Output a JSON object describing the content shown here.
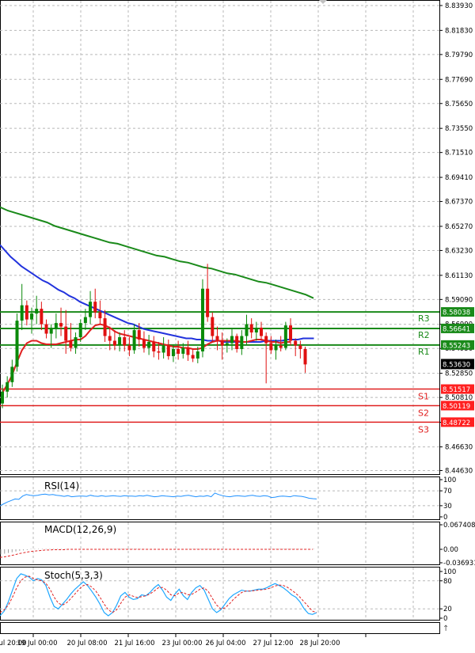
{
  "chart_data": {
    "type": "candlestick",
    "price_ticks": [
      "8.83930",
      "8.81830",
      "8.79790",
      "8.77690",
      "8.75650",
      "8.73550",
      "8.71510",
      "8.69410",
      "8.67370",
      "8.65270",
      "8.63230",
      "8.61130",
      "8.59090",
      "8.56990",
      "8.54950",
      "8.52850",
      "8.50810",
      "8.48710",
      "8.46630",
      "8.44630"
    ],
    "x_ticks": [
      "18 Jul 20:00",
      "19 Jul 00:00",
      "20 Jul 08:00",
      "21 Jul 16:00",
      "23 Jul 00:00",
      "26 Jul 04:00",
      "27 Jul 12:00",
      "28 Jul 20:00"
    ],
    "price_range": [
      8.4433,
      8.8433
    ],
    "levels": [
      {
        "name": "R3",
        "value": 8.58038,
        "label": "8.58038",
        "kind": "resistance"
      },
      {
        "name": "R2",
        "value": 8.56641,
        "label": "8.56641",
        "kind": "resistance"
      },
      {
        "name": "R1",
        "value": 8.55243,
        "label": "8.55243",
        "kind": "resistance"
      },
      {
        "name": "S1",
        "value": 8.51517,
        "label": "8.51517",
        "kind": "support"
      },
      {
        "name": "S2",
        "value": 8.50119,
        "label": "8.50119",
        "kind": "support"
      },
      {
        "name": "S3",
        "value": 8.48722,
        "label": "8.48722",
        "kind": "support"
      }
    ],
    "current_price": {
      "value": 8.5363,
      "label": "8.53630"
    },
    "candles": [
      [
        8.503,
        8.519,
        8.499,
        8.513
      ],
      [
        8.513,
        8.526,
        8.508,
        8.521
      ],
      [
        8.521,
        8.54,
        8.517,
        8.534
      ],
      [
        8.534,
        8.579,
        8.53,
        8.573
      ],
      [
        8.573,
        8.604,
        8.565,
        8.586
      ],
      [
        8.586,
        8.59,
        8.569,
        8.574
      ],
      [
        8.574,
        8.584,
        8.562,
        8.579
      ],
      [
        8.579,
        8.594,
        8.57,
        8.583
      ],
      [
        8.583,
        8.589,
        8.565,
        8.57
      ],
      [
        8.57,
        8.574,
        8.558,
        8.562
      ],
      [
        8.562,
        8.57,
        8.55,
        8.566
      ],
      [
        8.566,
        8.579,
        8.558,
        8.571
      ],
      [
        8.571,
        8.584,
        8.56,
        8.568
      ],
      [
        8.568,
        8.582,
        8.545,
        8.556
      ],
      [
        8.556,
        8.571,
        8.547,
        8.55
      ],
      [
        8.55,
        8.563,
        8.545,
        8.559
      ],
      [
        8.559,
        8.574,
        8.555,
        8.571
      ],
      [
        8.571,
        8.583,
        8.565,
        8.576
      ],
      [
        8.576,
        8.598,
        8.57,
        8.589
      ],
      [
        8.589,
        8.6,
        8.575,
        8.58
      ],
      [
        8.58,
        8.59,
        8.57,
        8.575
      ],
      [
        8.575,
        8.582,
        8.555,
        8.56
      ],
      [
        8.56,
        8.568,
        8.548,
        8.556
      ],
      [
        8.556,
        8.565,
        8.548,
        8.552
      ],
      [
        8.552,
        8.563,
        8.547,
        8.559
      ],
      [
        8.559,
        8.565,
        8.547,
        8.552
      ],
      [
        8.552,
        8.559,
        8.543,
        8.548
      ],
      [
        8.548,
        8.57,
        8.545,
        8.565
      ],
      [
        8.565,
        8.571,
        8.551,
        8.557
      ],
      [
        8.557,
        8.564,
        8.546,
        8.55
      ],
      [
        8.55,
        8.561,
        8.544,
        8.555
      ],
      [
        8.555,
        8.56,
        8.542,
        8.547
      ],
      [
        8.547,
        8.555,
        8.54,
        8.546
      ],
      [
        8.546,
        8.559,
        8.541,
        8.552
      ],
      [
        8.552,
        8.557,
        8.54,
        8.543
      ],
      [
        8.543,
        8.553,
        8.538,
        8.549
      ],
      [
        8.549,
        8.556,
        8.54,
        8.545
      ],
      [
        8.545,
        8.554,
        8.541,
        8.55
      ],
      [
        8.55,
        8.556,
        8.539,
        8.544
      ],
      [
        8.544,
        8.549,
        8.538,
        8.541
      ],
      [
        8.541,
        8.551,
        8.537,
        8.547
      ],
      [
        8.547,
        8.608,
        8.542,
        8.6
      ],
      [
        8.6,
        8.621,
        8.572,
        8.576
      ],
      [
        8.576,
        8.58,
        8.555,
        8.56
      ],
      [
        8.56,
        8.568,
        8.548,
        8.556
      ],
      [
        8.556,
        8.563,
        8.54,
        8.552
      ],
      [
        8.552,
        8.558,
        8.546,
        8.554
      ],
      [
        8.554,
        8.566,
        8.548,
        8.56
      ],
      [
        8.56,
        8.562,
        8.546,
        8.549
      ],
      [
        8.549,
        8.565,
        8.544,
        8.56
      ],
      [
        8.56,
        8.578,
        8.553,
        8.57
      ],
      [
        8.57,
        8.575,
        8.558,
        8.563
      ],
      [
        8.563,
        8.572,
        8.556,
        8.567
      ],
      [
        8.567,
        8.572,
        8.556,
        8.56
      ],
      [
        8.56,
        8.563,
        8.52,
        8.554
      ],
      [
        8.554,
        8.56,
        8.545,
        8.548
      ],
      [
        8.548,
        8.557,
        8.54,
        8.552
      ],
      [
        8.552,
        8.56,
        8.547,
        8.55
      ],
      [
        8.55,
        8.572,
        8.548,
        8.569
      ],
      [
        8.569,
        8.575,
        8.552,
        8.556
      ],
      [
        8.556,
        8.558,
        8.543,
        8.552
      ],
      [
        8.552,
        8.556,
        8.541,
        8.549
      ],
      [
        8.549,
        8.551,
        8.529,
        8.536
      ]
    ],
    "ma_blue": [
      8.637,
      8.632,
      8.627,
      8.623,
      8.619,
      8.616,
      8.613,
      8.61,
      8.607,
      8.605,
      8.602,
      8.599,
      8.597,
      8.594,
      8.592,
      8.589,
      8.587,
      8.585,
      8.583,
      8.581,
      8.579,
      8.577,
      8.575,
      8.573,
      8.571,
      8.57,
      8.568,
      8.566,
      8.565,
      8.564,
      8.563,
      8.562,
      8.561,
      8.56,
      8.559,
      8.558,
      8.558,
      8.557,
      8.557,
      8.556,
      8.556,
      8.556,
      8.555,
      8.555,
      8.555,
      8.555,
      8.555,
      8.555,
      8.555,
      8.555,
      8.556,
      8.556,
      8.556,
      8.556,
      8.557,
      8.557,
      8.557,
      8.558,
      8.558,
      8.558
    ],
    "ma_red": [
      8.512,
      8.519,
      8.527,
      8.538,
      8.548,
      8.554,
      8.556,
      8.556,
      8.554,
      8.553,
      8.553,
      8.553,
      8.554,
      8.555,
      8.556,
      8.557,
      8.557,
      8.56,
      8.565,
      8.569,
      8.57,
      8.569,
      8.567,
      8.564,
      8.562,
      8.561,
      8.56,
      8.559,
      8.558,
      8.557,
      8.556,
      8.555,
      8.554,
      8.553,
      8.552,
      8.551,
      8.551,
      8.55,
      8.55,
      8.549,
      8.549,
      8.55,
      8.553,
      8.555,
      8.556,
      8.556,
      8.556,
      8.556,
      8.556,
      8.555,
      8.555,
      8.556,
      8.557,
      8.557,
      8.556,
      8.555,
      8.555,
      8.554,
      8.555,
      8.555
    ],
    "ma_green": [
      8.669,
      8.666,
      8.664,
      8.662,
      8.66,
      8.658,
      8.656,
      8.653,
      8.651,
      8.649,
      8.647,
      8.645,
      8.643,
      8.641,
      8.639,
      8.638,
      8.636,
      8.634,
      8.632,
      8.63,
      8.628,
      8.627,
      8.625,
      8.623,
      8.622,
      8.62,
      8.618,
      8.617,
      8.615,
      8.613,
      8.612,
      8.61,
      8.608,
      8.606,
      8.605,
      8.603,
      8.601,
      8.599,
      8.597,
      8.595,
      8.592
    ],
    "rsi": {
      "title": "RSI(14)",
      "ticks": [
        "100",
        "70",
        "30",
        "0"
      ],
      "range": [
        0,
        100
      ],
      "values": [
        30,
        35,
        40,
        44,
        48,
        47,
        56,
        60,
        58,
        57,
        58,
        60,
        61,
        59,
        60,
        58,
        57,
        55,
        57,
        54,
        55,
        56,
        56,
        55,
        58,
        56,
        55,
        57,
        55,
        56,
        57,
        56,
        55,
        57,
        56,
        56,
        55,
        57,
        56,
        58,
        56,
        54,
        55,
        57,
        56,
        55,
        54,
        56,
        55,
        57,
        58,
        56,
        54,
        56,
        55,
        57,
        54,
        64,
        60,
        57,
        55,
        54,
        56,
        57,
        56,
        55,
        57,
        58,
        56,
        55,
        57,
        56,
        52,
        53,
        55,
        56,
        55,
        54,
        57,
        56,
        55,
        53,
        50,
        49,
        48
      ]
    },
    "macd": {
      "title": "MACD(12,26,9)",
      "ticks": [
        "0.067408",
        "0.00",
        "-0.036931"
      ],
      "range": [
        -0.036931,
        0.067408
      ],
      "histogram": [
        -0.014,
        -0.012,
        -0.01,
        -0.008,
        -0.006,
        -0.004,
        -0.003,
        -0.002,
        -0.001,
        -0.001,
        0,
        0,
        0,
        0,
        0,
        0,
        0,
        0,
        0,
        0,
        0,
        0,
        0,
        0,
        0,
        0,
        0,
        0,
        0,
        0,
        0,
        0,
        0,
        0,
        0,
        0,
        0,
        0,
        0,
        0,
        0,
        0,
        0,
        0,
        0,
        0,
        0,
        0,
        0,
        0,
        0,
        0,
        0,
        0,
        0,
        0,
        0,
        0,
        0,
        0,
        0,
        0,
        0,
        0,
        0,
        0,
        0,
        0,
        0,
        0,
        0,
        0,
        0,
        0,
        0,
        0,
        0,
        0,
        0,
        0,
        0,
        0,
        0,
        0
      ],
      "signal": [
        -0.022,
        -0.021,
        -0.019,
        -0.017,
        -0.015,
        -0.012,
        -0.01,
        -0.008,
        -0.006,
        -0.005,
        -0.004,
        -0.003,
        -0.002,
        -0.002,
        -0.001,
        -0.001,
        -0.001,
        -0.001,
        0,
        0,
        0,
        0,
        0,
        0,
        0,
        0,
        0,
        0,
        0,
        0,
        0,
        0,
        0,
        0,
        0,
        0,
        0,
        0,
        0,
        0,
        0,
        0,
        0,
        0,
        0,
        0,
        0,
        0,
        0,
        0,
        0,
        0,
        0,
        0,
        0,
        0,
        0,
        0,
        0,
        0,
        0,
        0,
        0,
        0,
        0,
        0,
        0,
        0,
        0,
        0,
        0,
        0,
        0,
        0,
        0,
        0,
        0,
        0,
        0,
        0,
        0,
        0,
        0,
        0
      ]
    },
    "stoch": {
      "title": "Stoch(5,3,3)",
      "ticks": [
        "100",
        "80",
        "20",
        "0"
      ],
      "range": [
        0,
        100
      ],
      "main": [
        5,
        15,
        35,
        60,
        85,
        95,
        92,
        88,
        80,
        85,
        82,
        70,
        45,
        25,
        20,
        30,
        40,
        52,
        62,
        70,
        78,
        70,
        58,
        45,
        30,
        12,
        5,
        12,
        28,
        48,
        55,
        45,
        40,
        42,
        50,
        48,
        55,
        65,
        72,
        60,
        45,
        38,
        52,
        62,
        48,
        40,
        55,
        65,
        70,
        60,
        40,
        20,
        12,
        18,
        30,
        42,
        50,
        55,
        60,
        58,
        58,
        60,
        62,
        62,
        65,
        70,
        74,
        70,
        65,
        58,
        50,
        45,
        35,
        20,
        10,
        8,
        12
      ],
      "signal": [
        12,
        18,
        28,
        45,
        65,
        80,
        88,
        90,
        85,
        82,
        80,
        75,
        62,
        45,
        32,
        28,
        33,
        42,
        52,
        62,
        70,
        72,
        67,
        58,
        45,
        30,
        18,
        12,
        18,
        32,
        45,
        50,
        47,
        44,
        46,
        48,
        52,
        58,
        65,
        66,
        60,
        50,
        48,
        54,
        55,
        50,
        51,
        56,
        62,
        65,
        57,
        42,
        28,
        20,
        22,
        30,
        40,
        48,
        55,
        58,
        58,
        59,
        60,
        61,
        62,
        65,
        69,
        71,
        70,
        66,
        60,
        53,
        45,
        35,
        25,
        15,
        12
      ]
    }
  }
}
